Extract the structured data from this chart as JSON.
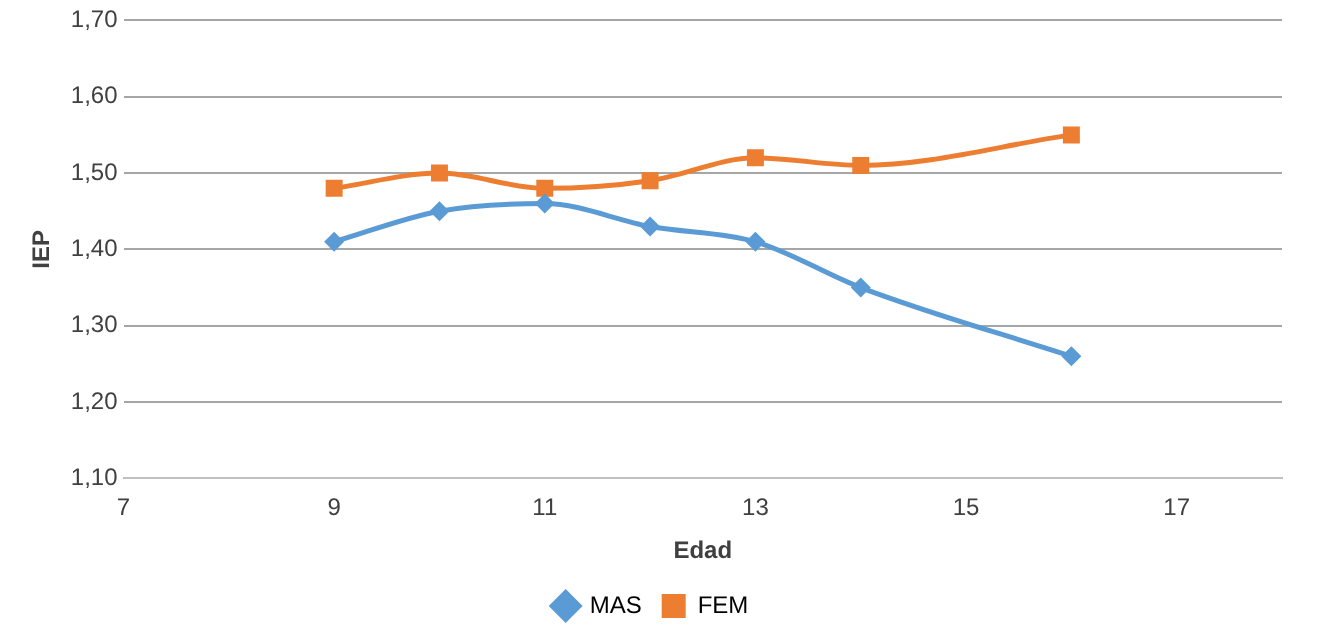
{
  "chart_data": {
    "type": "line",
    "xlabel": "Edad",
    "ylabel": "IEP",
    "x": [
      9,
      10,
      11,
      12,
      13,
      14,
      16
    ],
    "series": [
      {
        "name": "MAS",
        "color": "#5b9bd5",
        "marker": "diamond",
        "values": [
          1.41,
          1.45,
          1.46,
          1.43,
          1.41,
          1.35,
          1.26
        ]
      },
      {
        "name": "FEM",
        "color": "#ed7d31",
        "marker": "square",
        "values": [
          1.48,
          1.5,
          1.48,
          1.49,
          1.52,
          1.51,
          1.55
        ]
      }
    ],
    "xlim": [
      7,
      18
    ],
    "xticks": [
      7,
      9,
      11,
      13,
      15,
      17
    ],
    "ylim": [
      1.1,
      1.7
    ],
    "yticks": [
      {
        "value": 1.1,
        "label": "1,10"
      },
      {
        "value": 1.2,
        "label": "1,20"
      },
      {
        "value": 1.3,
        "label": "1,30"
      },
      {
        "value": 1.4,
        "label": "1,40"
      },
      {
        "value": 1.5,
        "label": "1,50"
      },
      {
        "value": 1.6,
        "label": "1,60"
      },
      {
        "value": 1.7,
        "label": "1,70"
      }
    ],
    "grid": "y",
    "legend": "bottom"
  }
}
